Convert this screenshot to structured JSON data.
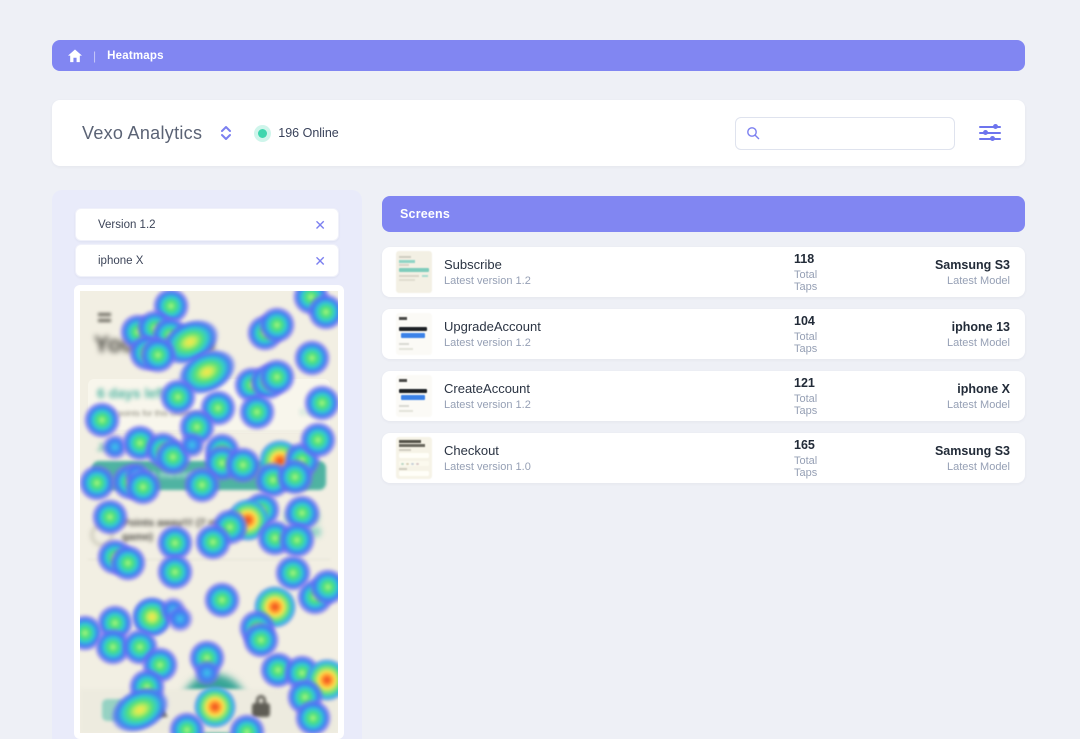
{
  "colors": {
    "accent": "#8186f2",
    "icon_purple": "#7b7ff0",
    "online_green": "#3fd6ae",
    "page_bg": "#eef0f6",
    "panel_bg": "#e9ebfa",
    "heatmap_bg": "#f2efe3",
    "heatmap_teal": "#4fb3a2"
  },
  "breadcrumb": {
    "label": "Heatmaps"
  },
  "header": {
    "title": "Vexo Analytics",
    "online": "196 Online",
    "search_placeholder": ""
  },
  "filters": [
    {
      "label": "Version 1.2"
    },
    {
      "label": "iphone X"
    }
  ],
  "screens": {
    "header": "Screens",
    "rows": [
      {
        "name": "Subscribe",
        "version": "Latest version 1.2",
        "taps": "118",
        "taps_label": "Total Taps",
        "model": "Samsung S3",
        "model_label": "Latest Model"
      },
      {
        "name": "UpgradeAccount",
        "version": "Latest version 1.2",
        "taps": "104",
        "taps_label": "Total Taps",
        "model": "iphone 13",
        "model_label": "Latest Model"
      },
      {
        "name": "CreateAccount",
        "version": "Latest version 1.2",
        "taps": "121",
        "taps_label": "Total Taps",
        "model": "iphone X",
        "model_label": "Latest Model"
      },
      {
        "name": "Checkout",
        "version": "Latest version 1.0",
        "taps": "165",
        "taps_label": "Total Taps",
        "model": "Samsung S3",
        "model_label": "Latest Model"
      }
    ]
  },
  "heatmap": {
    "screen": {
      "title": "Your Goals",
      "days_left": "6 days left",
      "caption": "Goal points for this challenge",
      "caption_link": "Edit",
      "row_label": "Jan",
      "row_text": "is on a challenge",
      "button_label": "Send a message",
      "message_line1": "Points away!!! (7 more to the",
      "message_line2": "game)"
    },
    "blobs": [
      [
        91,
        15,
        0
      ],
      [
        231,
        6,
        0
      ],
      [
        246,
        21,
        0
      ],
      [
        58,
        41,
        0
      ],
      [
        75,
        37,
        0
      ],
      [
        90,
        44,
        0
      ],
      [
        110,
        51,
        1,
        1
      ],
      [
        185,
        42,
        0
      ],
      [
        197,
        34,
        0
      ],
      [
        67,
        62,
        0
      ],
      [
        78,
        64,
        0
      ],
      [
        232,
        67,
        0
      ],
      [
        127,
        81,
        1,
        1
      ],
      [
        172,
        94,
        0
      ],
      [
        188,
        91,
        0
      ],
      [
        197,
        86,
        0
      ],
      [
        98,
        106,
        0
      ],
      [
        177,
        121,
        0
      ],
      [
        242,
        112,
        0
      ],
      [
        138,
        117,
        0
      ],
      [
        22,
        129,
        0
      ],
      [
        117,
        136,
        0
      ],
      [
        35,
        156,
        3
      ],
      [
        60,
        152,
        0
      ],
      [
        83,
        159,
        0
      ],
      [
        93,
        166,
        0
      ],
      [
        112,
        154,
        3
      ],
      [
        142,
        160,
        0
      ],
      [
        142,
        172,
        0
      ],
      [
        163,
        174,
        0
      ],
      [
        200,
        170,
        2
      ],
      [
        222,
        169,
        0
      ],
      [
        238,
        149,
        0
      ],
      [
        193,
        189,
        0
      ],
      [
        215,
        186,
        0
      ],
      [
        17,
        192,
        0
      ],
      [
        50,
        191,
        0
      ],
      [
        57,
        184,
        3
      ],
      [
        63,
        196,
        0
      ],
      [
        122,
        194,
        0
      ],
      [
        182,
        219,
        0
      ],
      [
        30,
        226,
        0
      ],
      [
        168,
        229,
        2
      ],
      [
        150,
        236,
        0
      ],
      [
        222,
        222,
        0
      ],
      [
        195,
        247,
        0
      ],
      [
        217,
        249,
        0
      ],
      [
        35,
        266,
        0
      ],
      [
        48,
        272,
        0
      ],
      [
        95,
        252,
        0
      ],
      [
        133,
        251,
        0
      ],
      [
        95,
        281,
        0
      ],
      [
        213,
        282,
        0
      ],
      [
        142,
        309,
        0
      ],
      [
        195,
        316,
        2
      ],
      [
        235,
        306,
        0
      ],
      [
        248,
        296,
        0
      ],
      [
        72,
        326,
        1
      ],
      [
        93,
        319,
        3
      ],
      [
        100,
        328,
        3
      ],
      [
        35,
        332,
        0
      ],
      [
        5,
        342,
        0
      ],
      [
        177,
        337,
        0
      ],
      [
        181,
        349,
        0
      ],
      [
        33,
        356,
        0
      ],
      [
        60,
        356,
        0
      ],
      [
        80,
        374,
        0
      ],
      [
        127,
        367,
        0
      ],
      [
        198,
        379,
        0
      ],
      [
        222,
        382,
        0
      ],
      [
        247,
        389,
        2
      ],
      [
        67,
        396,
        0
      ],
      [
        127,
        382,
        3
      ],
      [
        225,
        406,
        0
      ],
      [
        60,
        419,
        1,
        1
      ],
      [
        135,
        416,
        2
      ],
      [
        107,
        439,
        0
      ],
      [
        233,
        427,
        0
      ],
      [
        167,
        441,
        0
      ],
      [
        290,
        430,
        0
      ]
    ]
  }
}
